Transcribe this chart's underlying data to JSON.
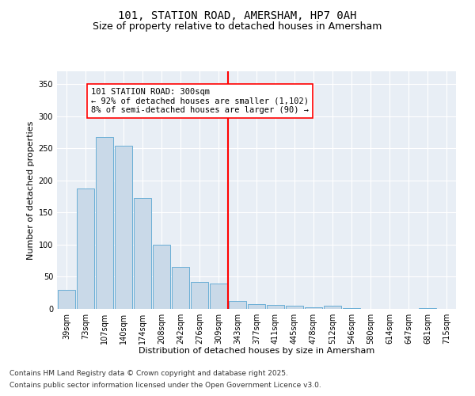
{
  "title1": "101, STATION ROAD, AMERSHAM, HP7 0AH",
  "title2": "Size of property relative to detached houses in Amersham",
  "xlabel": "Distribution of detached houses by size in Amersham",
  "ylabel": "Number of detached properties",
  "categories": [
    "39sqm",
    "73sqm",
    "107sqm",
    "140sqm",
    "174sqm",
    "208sqm",
    "242sqm",
    "276sqm",
    "309sqm",
    "343sqm",
    "377sqm",
    "411sqm",
    "445sqm",
    "478sqm",
    "512sqm",
    "546sqm",
    "580sqm",
    "614sqm",
    "647sqm",
    "681sqm",
    "715sqm"
  ],
  "values": [
    30,
    187,
    268,
    254,
    173,
    100,
    65,
    42,
    39,
    12,
    8,
    6,
    5,
    3,
    5,
    1,
    0,
    0,
    0,
    1,
    0
  ],
  "bar_color": "#c9d9e8",
  "bar_edge_color": "#6aaed6",
  "vline_x_index": 8,
  "vline_color": "red",
  "annotation_text": "101 STATION ROAD: 300sqm\n← 92% of detached houses are smaller (1,102)\n8% of semi-detached houses are larger (90) →",
  "annotation_box_color": "white",
  "annotation_box_edge": "red",
  "ylim": [
    0,
    370
  ],
  "yticks": [
    0,
    50,
    100,
    150,
    200,
    250,
    300,
    350
  ],
  "background_color": "#e8eef5",
  "fig_background": "#ffffff",
  "footer1": "Contains HM Land Registry data © Crown copyright and database right 2025.",
  "footer2": "Contains public sector information licensed under the Open Government Licence v3.0.",
  "title1_fontsize": 10,
  "title2_fontsize": 9,
  "xlabel_fontsize": 8,
  "ylabel_fontsize": 8,
  "tick_fontsize": 7,
  "annotation_fontsize": 7.5,
  "footer_fontsize": 6.5
}
